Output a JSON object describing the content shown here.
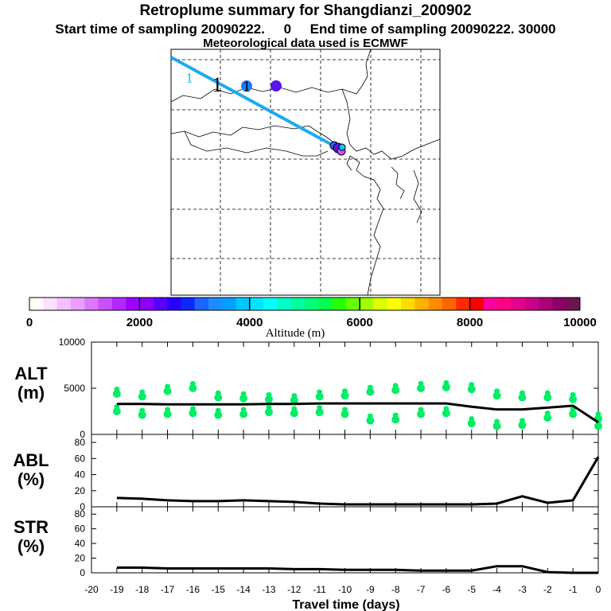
{
  "header": {
    "title": "Retroplume summary for Shangdianzi_200902",
    "subtitle": "Start time of sampling 20090222.     0     End time of sampling 20090222. 30000",
    "meteo": "Meteorological data used is ECMWF"
  },
  "map": {
    "markers": [
      {
        "label": "1",
        "color": "#00c8ff",
        "kind": "text"
      },
      {
        "label": "1",
        "color": "#000000",
        "kind": "text"
      },
      {
        "label": "1",
        "color": "#1e78ff",
        "kind": "dot"
      },
      {
        "label": "",
        "color": "#5a14e6",
        "kind": "dot"
      }
    ]
  },
  "colorbar": {
    "colors": [
      "#ffffff",
      "#ffe0ff",
      "#f5c0ff",
      "#eba0ff",
      "#dc78ff",
      "#c850ff",
      "#b428ff",
      "#a000ff",
      "#8c00ff",
      "#5a00ff",
      "#2800ff",
      "#0a28ff",
      "#1e64ff",
      "#1e8cff",
      "#00a0ff",
      "#00c8ff",
      "#00e6ff",
      "#00ffff",
      "#00ffc8",
      "#00ffa0",
      "#00ff78",
      "#00ff50",
      "#28ff00",
      "#64ff00",
      "#a0ff00",
      "#dcff00",
      "#ffff00",
      "#ffdc00",
      "#ffb400",
      "#ff8c00",
      "#ff6400",
      "#ff2800",
      "#ff0000",
      "#ff00a0",
      "#ff0080",
      "#e6008c",
      "#c8008c",
      "#aa0078",
      "#8c0064",
      "#6e1450"
    ],
    "tick_labels": [
      "0",
      "2000",
      "4000",
      "6000",
      "8000",
      "10000"
    ],
    "xlabel": "Altitude (m)"
  },
  "chart_data": [
    {
      "type": "line",
      "panel": "ALT",
      "ylabel_line1": "ALT",
      "ylabel_line2": "(m)",
      "ylim": [
        0,
        10000
      ],
      "yticks": [
        "10000",
        "5000",
        "0"
      ],
      "x": [
        -19,
        -18,
        -17,
        -16,
        -15,
        -14,
        -13,
        -12,
        -11,
        -10,
        -9,
        -8,
        -7,
        -6,
        -5,
        -4,
        -3,
        -2,
        -1,
        0
      ],
      "mean_altitude": [
        3300,
        3300,
        3250,
        3250,
        3250,
        3250,
        3300,
        3300,
        3350,
        3350,
        3350,
        3350,
        3350,
        3350,
        3000,
        2700,
        2700,
        2900,
        3100,
        1300
      ],
      "scatter_clusters": [
        [
          -19,
          4400,
          2500
        ],
        [
          -18,
          4100,
          2100
        ],
        [
          -17,
          4700,
          2200
        ],
        [
          -16,
          5000,
          2300
        ],
        [
          -15,
          4000,
          2100
        ],
        [
          -14,
          3900,
          2200
        ],
        [
          -13,
          3800,
          2400
        ],
        [
          -12,
          3700,
          2300
        ],
        [
          -11,
          4100,
          2400
        ],
        [
          -10,
          4200,
          2200
        ],
        [
          -9,
          4600,
          1500
        ],
        [
          -8,
          4800,
          1600
        ],
        [
          -7,
          5000,
          2200
        ],
        [
          -6,
          5100,
          2300
        ],
        [
          -5,
          4900,
          1200
        ],
        [
          -4,
          4200,
          900
        ],
        [
          -3,
          4000,
          1000
        ],
        [
          -2,
          4000,
          1800
        ],
        [
          -1,
          3800,
          2200
        ],
        [
          0,
          1700,
          900
        ]
      ],
      "color": "#00ee66"
    },
    {
      "type": "line",
      "panel": "ABL",
      "ylabel_line1": "ABL",
      "ylabel_line2": "(%)",
      "ylim": [
        0,
        90
      ],
      "yticks": [
        "80",
        "60",
        "40",
        "20",
        "0"
      ],
      "x": [
        -19,
        -18,
        -17,
        -16,
        -15,
        -14,
        -13,
        -12,
        -11,
        -10,
        -9,
        -8,
        -7,
        -6,
        -5,
        -4,
        -3,
        -2,
        -1,
        0
      ],
      "values": [
        11,
        10,
        8,
        7,
        7,
        8,
        7,
        6,
        4,
        3,
        3,
        3,
        3,
        3,
        3,
        4,
        13,
        5,
        8,
        62
      ]
    },
    {
      "type": "line",
      "panel": "STR",
      "ylabel_line1": "STR",
      "ylabel_line2": "(%)",
      "ylim": [
        0,
        90
      ],
      "yticks": [
        "80",
        "60",
        "40",
        "20",
        "0"
      ],
      "x": [
        -19,
        -18,
        -17,
        -16,
        -15,
        -14,
        -13,
        -12,
        -11,
        -10,
        -9,
        -8,
        -7,
        -6,
        -5,
        -4,
        -3,
        -2,
        -1,
        0
      ],
      "values": [
        7,
        7,
        6,
        6,
        6,
        6,
        6,
        5,
        5,
        4,
        4,
        4,
        3,
        3,
        3,
        9,
        9,
        1,
        0,
        0
      ],
      "xlabel": "Travel time (days)",
      "xtick_labels": [
        "-20",
        "-19",
        "-18",
        "-17",
        "-16",
        "-15",
        "-14",
        "-13",
        "-12",
        "-11",
        "-10",
        "-9",
        "-8",
        "-7",
        "-6",
        "-5",
        "-4",
        "-3",
        "-2",
        "-1",
        "0"
      ]
    }
  ]
}
